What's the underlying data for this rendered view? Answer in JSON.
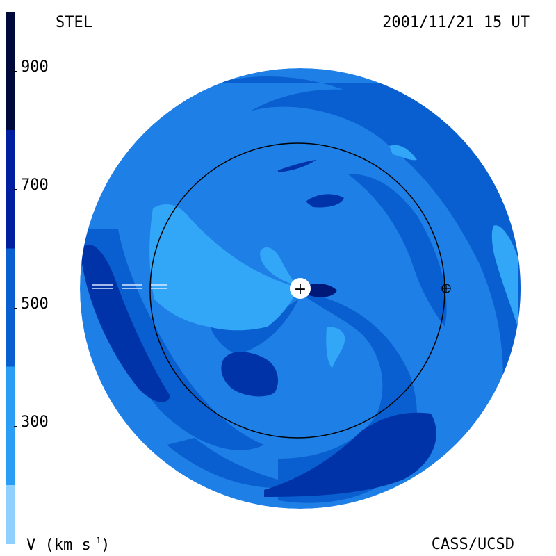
{
  "header": {
    "source": "STEL",
    "datetime": "2001/11/21 15 UT"
  },
  "footer": {
    "units_base": "V (km s",
    "units_exp": "-1",
    "units_close": ")",
    "credit": "CASS/UCSD"
  },
  "colorbar": {
    "min": 100,
    "max": 1000,
    "levels": [
      {
        "from": 100,
        "to": 200,
        "color": "#8fd0ff"
      },
      {
        "from": 200,
        "to": 400,
        "color": "#2a9ef5"
      },
      {
        "from": 400,
        "to": 600,
        "color": "#0a5fd0"
      },
      {
        "from": 600,
        "to": 800,
        "color": "#001ea0"
      },
      {
        "from": 800,
        "to": 1000,
        "color": "#000a3a"
      }
    ],
    "ticks": [
      {
        "value": 300,
        "label": "300"
      },
      {
        "value": 500,
        "label": "500"
      },
      {
        "value": 700,
        "label": "700"
      },
      {
        "value": 900,
        "label": "900"
      }
    ]
  },
  "map": {
    "sun_marker": "+",
    "earth_marker": "⊕",
    "colors": {
      "base": "#1e7fe6",
      "light": "#33a7f7",
      "medium": "#0a5fd0",
      "dark": "#0033a8",
      "darkest": "#001878",
      "orbit": "#000000"
    }
  }
}
